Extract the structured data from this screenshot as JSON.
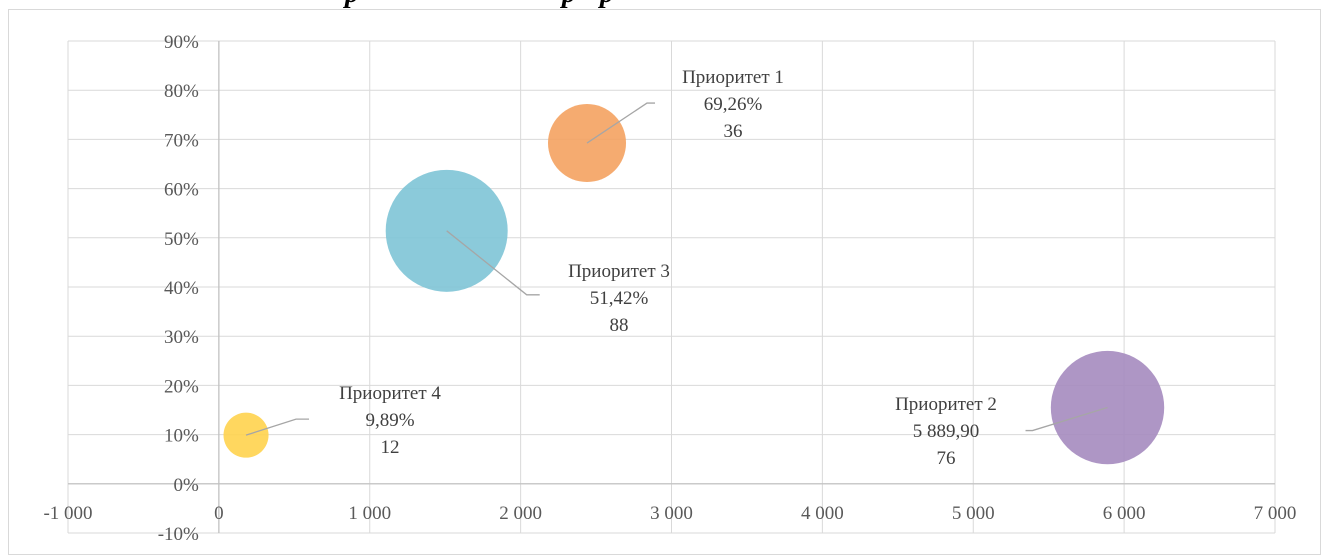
{
  "chart_data": {
    "type": "bubble",
    "title": "",
    "xlabel": "",
    "ylabel": "",
    "xlim": [
      -1000,
      7000
    ],
    "ylim": [
      -0.1,
      0.9
    ],
    "x_ticks": [
      -1000,
      0,
      1000,
      2000,
      3000,
      4000,
      5000,
      6000,
      7000
    ],
    "x_tick_labels": [
      "-1 000",
      "0",
      "1 000",
      "2 000",
      "3 000",
      "4 000",
      "5 000",
      "6 000",
      "7 000"
    ],
    "y_ticks": [
      -0.1,
      0,
      0.1,
      0.2,
      0.3,
      0.4,
      0.5,
      0.6,
      0.7,
      0.8,
      0.9
    ],
    "y_tick_labels": [
      "-10%",
      "0%",
      "10%",
      "20%",
      "30%",
      "40%",
      "50%",
      "60%",
      "70%",
      "80%",
      "90%"
    ],
    "grid": true,
    "legend": "none",
    "series": [
      {
        "name": "Приоритет 1",
        "x": 2440,
        "y": 0.6926,
        "size": 36,
        "color": "#f4a261",
        "label_lines": [
          "Приоритет 1",
          "69,26%",
          "36"
        ]
      },
      {
        "name": "Приоритет 2",
        "x": 5889.9,
        "y": 0.155,
        "size": 76,
        "color": "#a58bbf",
        "label_lines": [
          "Приоритет 2",
          "5 889,90",
          "76"
        ]
      },
      {
        "name": "Приоритет 3",
        "x": 1510,
        "y": 0.5142,
        "size": 88,
        "color": "#7ec4d6",
        "label_lines": [
          "Приоритет 3",
          "51,42%",
          "88"
        ]
      },
      {
        "name": "Приоритет 4",
        "x": 180,
        "y": 0.0989,
        "size": 12,
        "color": "#ffd34e",
        "label_lines": [
          "Приоритет 4",
          "9,89%",
          "12"
        ]
      }
    ]
  },
  "colors": {
    "grid": "#d9d9d9",
    "axis": "#bfbfbf",
    "leader": "#a6a6a6",
    "tick_text": "#595959",
    "label_text": "#404040"
  }
}
